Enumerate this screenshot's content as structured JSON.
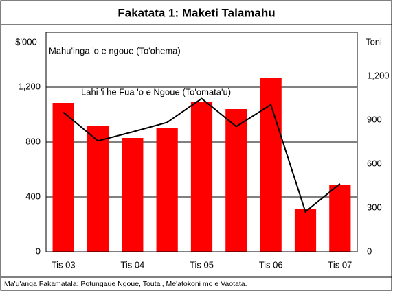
{
  "chart_data": {
    "type": "bar_line",
    "title": "Fakatata 1: Maketi Talamahu",
    "y_label": "$'000",
    "y2_label": "Toni",
    "source": "Ma'u'anga Fakamatala: Potungaue Ngoue, Toutai, Me'atokoni mo e Vaotata.",
    "categories": [
      "Tis 03",
      null,
      "Tis 04",
      null,
      "Tis 05",
      null,
      "Tis 06",
      null,
      "Tis 07"
    ],
    "series": [
      {
        "name": "Mahu'inga 'o e ngoue (To'ohema)",
        "color": "#ff0000",
        "kind": "bar",
        "axis": "y",
        "values": [
          1085,
          915,
          830,
          900,
          1090,
          1040,
          1265,
          315,
          490
        ]
      },
      {
        "name": "Lahi 'i he Fua 'o e Ngoue (To'omata'u)",
        "color": "#000000",
        "kind": "line",
        "axis": "y2",
        "values": [
          953,
          758,
          819,
          884,
          1047,
          856,
          1005,
          274,
          465
        ]
      }
    ],
    "ylim": [
      0,
      1600
    ],
    "yticks": [
      0,
      400,
      800,
      {
        "value": 1200,
        "label": "1,200"
      }
    ],
    "y2lim": [
      0,
      1500
    ],
    "y2ticks": [
      0,
      300,
      600,
      900,
      {
        "value": 1200,
        "label": "1,200"
      }
    ],
    "grid": true
  }
}
